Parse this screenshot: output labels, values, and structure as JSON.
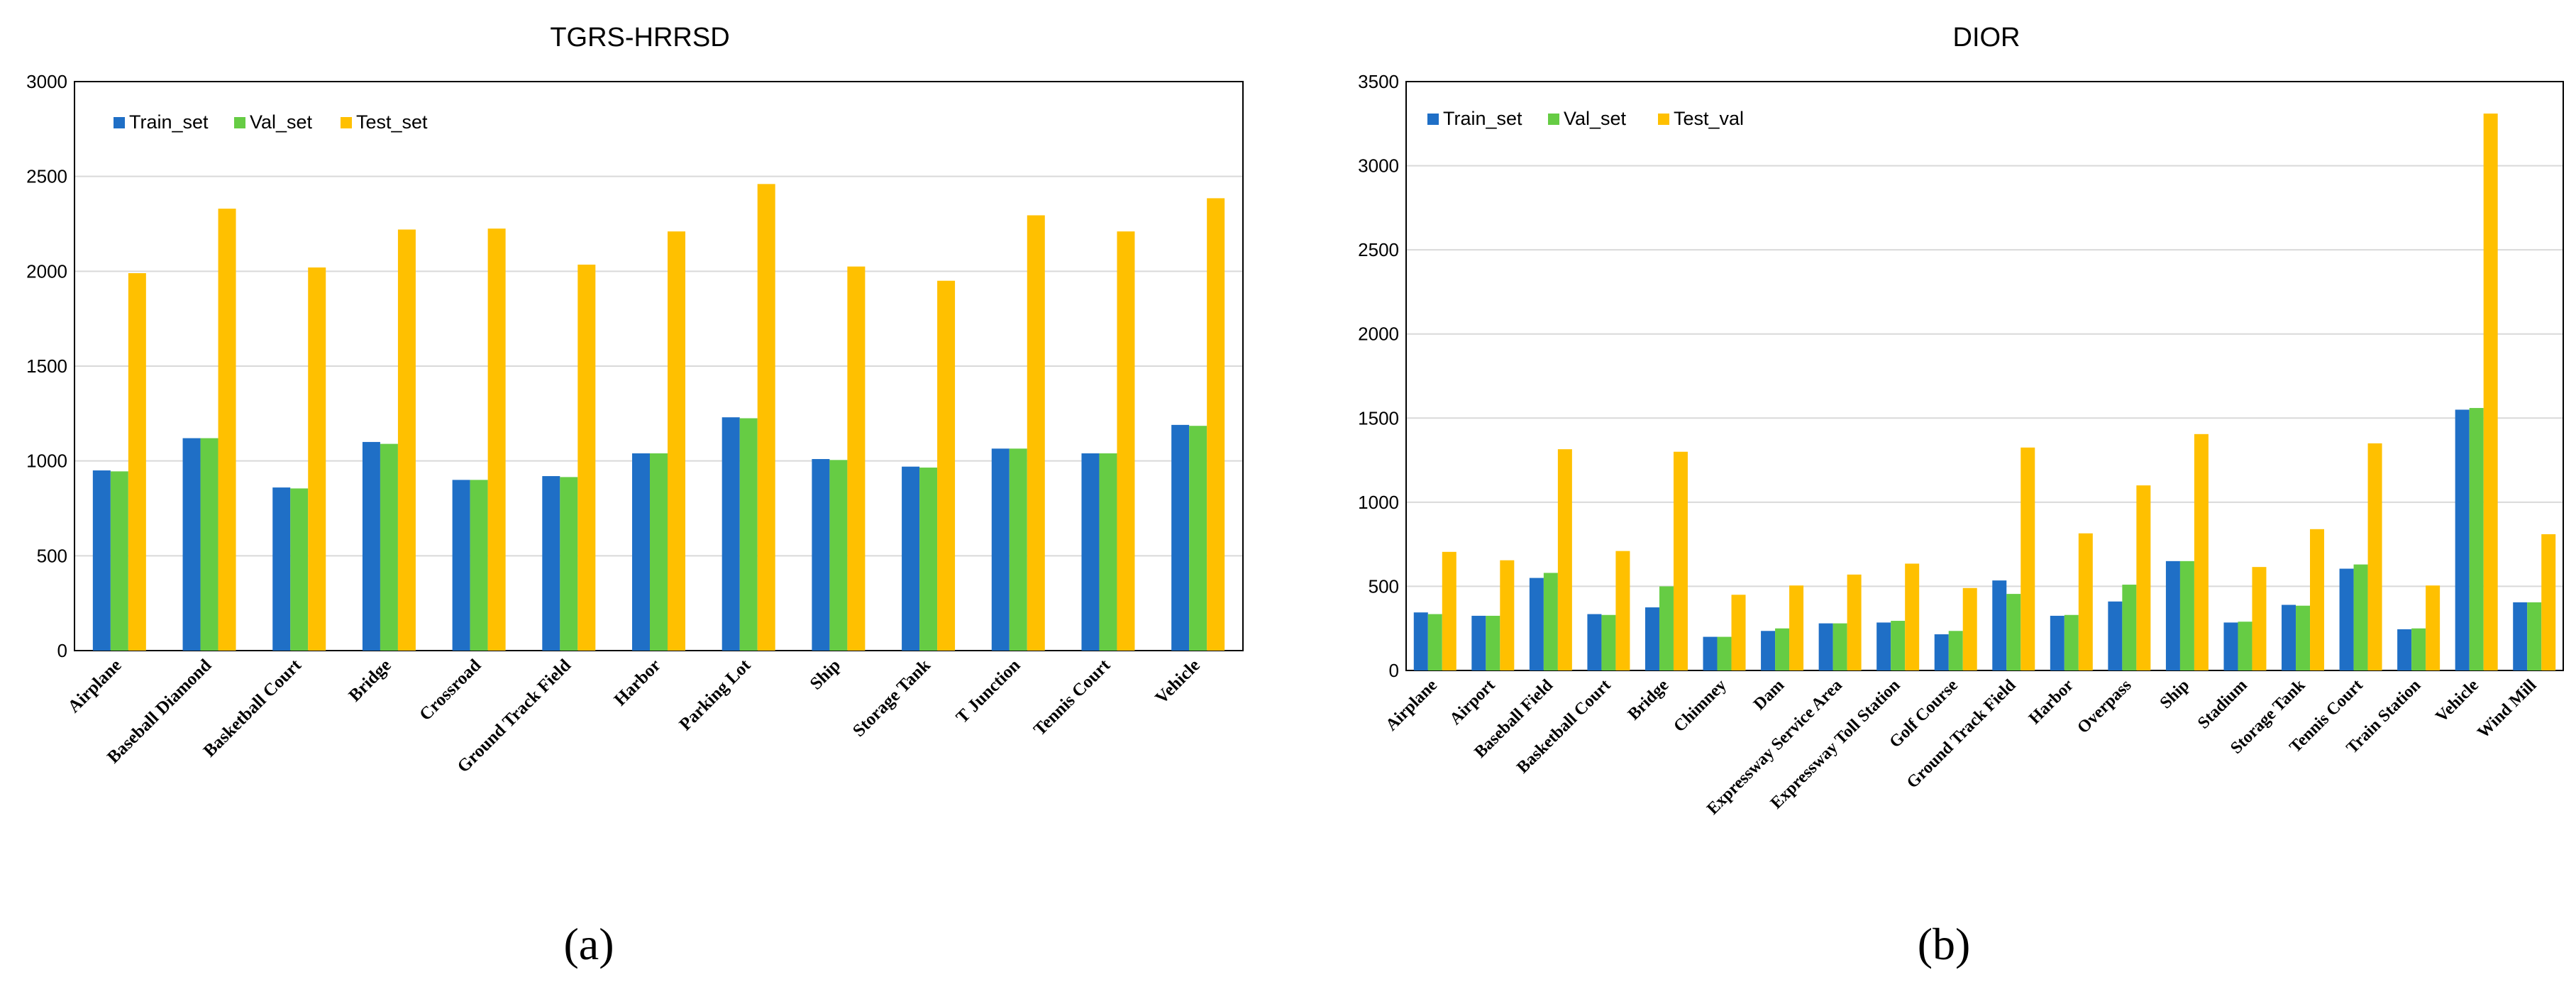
{
  "chart_data": [
    {
      "type": "bar",
      "title": "TGRS-HRRSD",
      "panel_label": "(a)",
      "ylim": [
        0,
        3000
      ],
      "yticks": [
        0,
        500,
        1000,
        1500,
        2000,
        2500,
        3000
      ],
      "ytick_labels": [
        "0",
        "500",
        "1000",
        "1500",
        "2000",
        "2500",
        "3000"
      ],
      "grid": true,
      "legend_position": "top-left",
      "categories": [
        "Airplane",
        "Baseball Diamond",
        "Basketball Court",
        "Bridge",
        "Crossroad",
        "Ground Track Field",
        "Harbor",
        "Parking Lot",
        "Ship",
        "Storage Tank",
        "T Junction",
        "Tennis Court",
        "Vehicle"
      ],
      "series": [
        {
          "name": "Train_set",
          "color": "#1f6fc6",
          "values": [
            950,
            1120,
            860,
            1100,
            900,
            920,
            1040,
            1230,
            1010,
            970,
            1065,
            1040,
            1190
          ]
        },
        {
          "name": "Val_set",
          "color": "#66cc44",
          "values": [
            945,
            1120,
            855,
            1090,
            900,
            915,
            1040,
            1225,
            1005,
            965,
            1065,
            1040,
            1185
          ]
        },
        {
          "name": "Test_set",
          "color": "#ffc000",
          "values": [
            1990,
            2330,
            2020,
            2220,
            2225,
            2035,
            2210,
            2460,
            2025,
            1950,
            2295,
            2210,
            2385
          ]
        }
      ]
    },
    {
      "type": "bar",
      "title": "DIOR",
      "panel_label": "(b)",
      "ylim": [
        0,
        3500
      ],
      "yticks": [
        0,
        500,
        1000,
        1500,
        2000,
        2500,
        3000,
        3500
      ],
      "ytick_labels": [
        "0",
        "500",
        "1000",
        "1500",
        "2000",
        "2500",
        "3000",
        "3500"
      ],
      "grid": true,
      "legend_position": "top-left",
      "categories": [
        "Airplane",
        "Airport",
        "Baseball Field",
        "Basketball Court",
        "Bridge",
        "Chimney",
        "Dam",
        "Expressway Service Area",
        "Expressway Toll Station",
        "Golf Course",
        "Ground Track Field",
        "Harbor",
        "Overpass",
        "Ship",
        "Stadium",
        "Storage Tank",
        "Tennis Court",
        "Train Station",
        "Vehicle",
        "Wind Mill"
      ],
      "series": [
        {
          "name": "Train_set",
          "color": "#1f6fc6",
          "values": [
            345,
            325,
            550,
            335,
            375,
            200,
            235,
            280,
            285,
            215,
            535,
            325,
            410,
            650,
            285,
            390,
            605,
            245,
            1550,
            405
          ]
        },
        {
          "name": "Val_set",
          "color": "#66cc44",
          "values": [
            335,
            325,
            580,
            330,
            500,
            200,
            250,
            280,
            295,
            235,
            455,
            330,
            510,
            650,
            290,
            385,
            630,
            250,
            1560,
            405
          ]
        },
        {
          "name": "Test_val",
          "color": "#ffc000",
          "values": [
            705,
            655,
            1315,
            710,
            1300,
            450,
            505,
            570,
            635,
            490,
            1325,
            815,
            1100,
            1405,
            615,
            840,
            1350,
            505,
            3310,
            810
          ]
        }
      ]
    }
  ]
}
